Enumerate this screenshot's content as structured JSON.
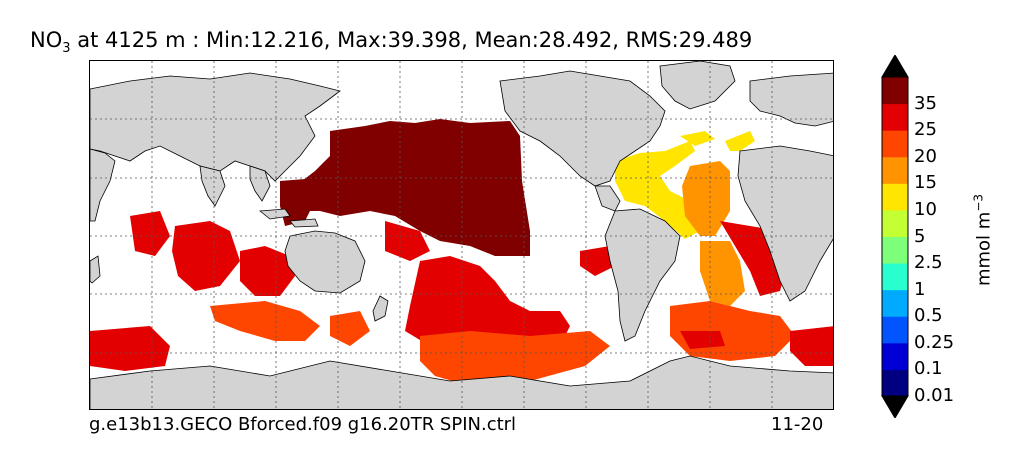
{
  "title": {
    "species": "NO",
    "species_sub": "3",
    "rest": " at 4125 m : Min:12.216, Max:39.398, Mean:28.492, RMS:29.489"
  },
  "footer": {
    "case_name": "g.e13b13.GECO Bforced.f09 g16.20TR SPIN.ctrl",
    "years": "11-20"
  },
  "colorbar": {
    "units": "mmol m",
    "units_exp": "−3",
    "labels": [
      "35",
      "25",
      "20",
      "15",
      "10",
      "5",
      "2.5",
      "1",
      "0.5",
      "0.25",
      "0.1",
      "0.01"
    ],
    "colors": [
      "#000080",
      "#0000d6",
      "#0055ff",
      "#00aaff",
      "#29ffce",
      "#7dff7a",
      "#c4ff33",
      "#ffe500",
      "#ff9400",
      "#ff4600",
      "#e30000",
      "#800000"
    ]
  },
  "map": {
    "land_color": "#d3d3d3",
    "grid": true
  }
}
